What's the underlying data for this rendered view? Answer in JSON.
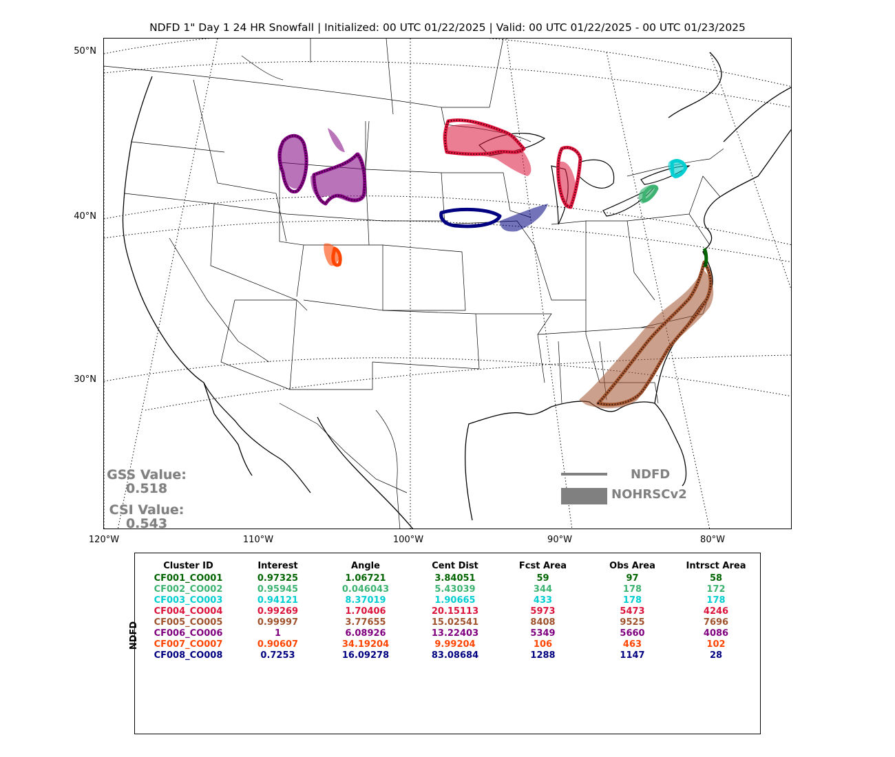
{
  "title": "NDFD 1\" Day 1 24 HR Snowfall | Initialized: 00 UTC 01/22/2025 | Valid: 00 UTC 01/22/2025 - 00 UTC 01/23/2025",
  "axes": {
    "lat_labels": [
      "50°N",
      "40°N",
      "30°N"
    ],
    "lon_labels": [
      "120°W",
      "110°W",
      "100°W",
      "90°W",
      "80°W"
    ]
  },
  "stats": {
    "gss_label": "GSS Value:",
    "gss_value": "0.518",
    "csi_label": "CSI Value:",
    "csi_value": "0.543"
  },
  "legend": {
    "line_label": "NDFD",
    "fill_label": "NOHRSCv2",
    "color": "#808080"
  },
  "table": {
    "side_label": "NDFD",
    "headers": [
      "Cluster ID",
      "Interest",
      "Angle",
      "Cent Dist",
      "Fcst Area",
      "Obs Area",
      "Intrsct Area"
    ],
    "rows": [
      {
        "color": "#006400",
        "cells": [
          "CF001_CO001",
          "0.97325",
          "1.06721",
          "3.84051",
          "59",
          "97",
          "58"
        ]
      },
      {
        "color": "#3cb371",
        "cells": [
          "CF002_CO002",
          "0.95945",
          "0.046043",
          "5.43039",
          "344",
          "178",
          "172"
        ]
      },
      {
        "color": "#00ced1",
        "cells": [
          "CF003_CO003",
          "0.94121",
          "8.37019",
          "1.90665",
          "433",
          "178",
          "178"
        ]
      },
      {
        "color": "#dc143c",
        "cells": [
          "CF004_CO004",
          "0.99269",
          "1.70406",
          "20.15113",
          "5973",
          "5473",
          "4246"
        ]
      },
      {
        "color": "#a0522d",
        "cells": [
          "CF005_CO005",
          "0.99997",
          "3.77655",
          "15.02541",
          "8408",
          "9525",
          "7696"
        ]
      },
      {
        "color": "#800080",
        "cells": [
          "CF006_CO006",
          "1",
          "6.08926",
          "13.22403",
          "5349",
          "5660",
          "4086"
        ]
      },
      {
        "color": "#ff4500",
        "cells": [
          "CF007_CO007",
          "0.90607",
          "34.19204",
          "9.99204",
          "106",
          "463",
          "102"
        ]
      },
      {
        "color": "#000080",
        "cells": [
          "CF008_CO008",
          "0.7253",
          "16.09278",
          "83.08684",
          "1288",
          "1147",
          "28"
        ]
      }
    ]
  }
}
